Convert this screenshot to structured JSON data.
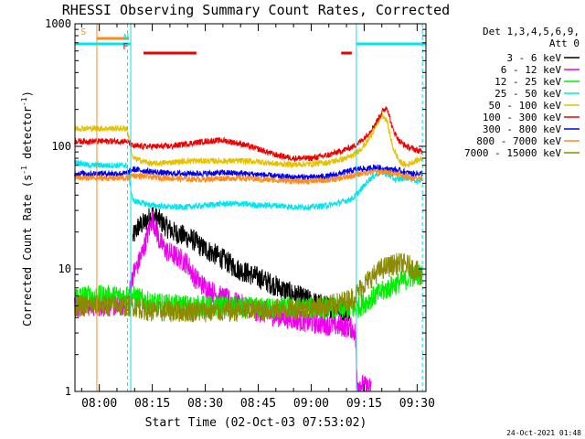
{
  "chart_data": {
    "type": "line",
    "title": "RHESSI Observing Summary Count Rates, Corrected",
    "xlabel": "Start Time (02-Oct-03 07:53:02)",
    "ylabel": "Corrected Count Rate (s",
    "ylabel_sup": "-1",
    "ylabel_tail": " detector",
    "ylabel_sup2": "-1",
    "ylabel_close": ")",
    "y_scale": "log",
    "ylim": [
      1,
      1000
    ],
    "xlim_minutes": [
      -6.9,
      92.5
    ],
    "x_ticks": [
      {
        "m": 0,
        "label": "08:00"
      },
      {
        "m": 15,
        "label": "08:15"
      },
      {
        "m": 30,
        "label": "08:30"
      },
      {
        "m": 45,
        "label": "08:45"
      },
      {
        "m": 60,
        "label": "09:00"
      },
      {
        "m": 75,
        "label": "09:15"
      },
      {
        "m": 90,
        "label": "09:30"
      }
    ],
    "y_ticks": [
      {
        "v": 1,
        "label": "1"
      },
      {
        "v": 10,
        "label": "10"
      },
      {
        "v": 100,
        "label": "100"
      },
      {
        "v": 1000,
        "label": "1000"
      }
    ],
    "legend_header": "Det 1,3,4,5,6,9,",
    "legend_header2": "Att 0",
    "timestamp": "24-Oct-2021 01:48",
    "flags": [
      {
        "label": "S",
        "color": "#ff8c1a",
        "start": -0.8,
        "end": 8.4
      },
      {
        "label": "N",
        "color": "#00e5ee",
        "start": -7.0,
        "end": 8.9
      },
      {
        "label": "F",
        "color": "#ee0000",
        "start": 12.5,
        "end": 27.5
      },
      {
        "label": "",
        "color": "#ee0000",
        "start": 68.5,
        "end": 71.5
      },
      {
        "label": "",
        "color": "#00e5ee",
        "start": 72.8,
        "end": 92.5
      }
    ],
    "vlines": [
      {
        "m": -0.7,
        "color": "#ff8c1a",
        "style": "solid"
      },
      {
        "m": 8.0,
        "color": "#00e5ee",
        "style": "dashed"
      },
      {
        "m": 8.9,
        "color": "#00e5ee",
        "style": "solid"
      },
      {
        "m": 72.8,
        "color": "#00e5ee",
        "style": "solid"
      },
      {
        "m": 91.5,
        "color": "#00e5ee",
        "style": "dashed"
      }
    ],
    "series": [
      {
        "name": "3 - 6 keV",
        "color": "#000000",
        "t": [
          9.5,
          11,
          13,
          15,
          17,
          19,
          21,
          23,
          25,
          27,
          29,
          31,
          33,
          35,
          37,
          39,
          41,
          43,
          45,
          47,
          49,
          51,
          53,
          55,
          57,
          59,
          61,
          63,
          65,
          67,
          69,
          71
        ],
        "v": [
          18,
          22,
          24,
          28,
          25,
          22,
          20,
          19,
          18,
          17,
          15,
          14,
          13,
          12,
          11,
          10,
          9.5,
          9,
          8.5,
          8,
          7.5,
          7,
          6.6,
          6.2,
          5.9,
          5.6,
          5.3,
          5.1,
          4.9,
          4.8,
          4.6,
          4.5
        ]
      },
      {
        "name": "6 - 12 keV",
        "color": "#ee00ee",
        "t": [
          -7,
          -3,
          0,
          3,
          6,
          7.8,
          9.5,
          11,
          13,
          15,
          17,
          19,
          21,
          23,
          25,
          27,
          29,
          33,
          37,
          41,
          45,
          49,
          53,
          57,
          61,
          65,
          69,
          71.5,
          72.5,
          73,
          75,
          77
        ],
        "v": [
          5,
          5,
          5,
          5,
          5,
          5,
          9,
          11,
          16,
          26,
          17,
          14,
          13,
          12,
          11,
          8.5,
          7.5,
          6.2,
          5.5,
          5,
          4.5,
          4.2,
          4,
          3.8,
          3.6,
          3.5,
          3.4,
          3.3,
          3,
          1.2,
          1.1,
          1.05
        ]
      },
      {
        "name": "12 - 25 keV",
        "color": "#00ee00",
        "t": [
          -7,
          -3,
          0,
          3,
          6,
          7.8,
          9.5,
          15,
          25,
          35,
          45,
          55,
          65,
          72.5,
          74,
          76,
          78,
          80,
          82,
          84,
          86,
          88,
          90,
          91.5
        ],
        "v": [
          6,
          6,
          6,
          6,
          6,
          6,
          6,
          5.2,
          5,
          4.9,
          4.8,
          4.8,
          4.8,
          4.7,
          5,
          5.5,
          6,
          6.5,
          7,
          7.5,
          8,
          8.5,
          9,
          9
        ]
      },
      {
        "name": "25 - 50 keV",
        "color": "#00e5ee",
        "t": [
          -7,
          -3,
          0,
          3,
          6,
          7.8,
          9.5,
          15,
          20,
          25,
          30,
          35,
          40,
          45,
          50,
          55,
          60,
          65,
          70,
          72,
          74,
          76,
          78,
          80,
          81,
          82,
          84,
          86,
          88,
          90,
          91.5
        ],
        "v": [
          75,
          70,
          70,
          70,
          70,
          70,
          36,
          33,
          32,
          32,
          33,
          34,
          34,
          33,
          33,
          32,
          32,
          33,
          36,
          38,
          44,
          52,
          58,
          62,
          60,
          58,
          53,
          55,
          55,
          52,
          55
        ]
      },
      {
        "name": "50 - 100 keV",
        "color": "#e5c100",
        "t": [
          -7,
          -3,
          0,
          3,
          6,
          7.8,
          9.5,
          15,
          20,
          25,
          30,
          35,
          40,
          45,
          50,
          55,
          60,
          65,
          70,
          72,
          74,
          76,
          78,
          80,
          81.5,
          83,
          85,
          87,
          89,
          91.5
        ],
        "v": [
          140,
          140,
          140,
          140,
          140,
          140,
          80,
          72,
          74,
          76,
          76,
          76,
          76,
          75,
          72,
          71,
          72,
          74,
          80,
          85,
          95,
          110,
          140,
          180,
          160,
          100,
          75,
          70,
          75,
          80
        ]
      },
      {
        "name": "100 - 300 keV",
        "color": "#ee0000",
        "t": [
          -7,
          -3,
          0,
          3,
          6,
          7.8,
          9.5,
          15,
          20,
          25,
          30,
          35,
          40,
          45,
          50,
          55,
          60,
          65,
          70,
          72,
          74,
          76,
          78,
          80,
          81.5,
          83,
          85,
          87,
          89,
          91.5
        ],
        "v": [
          110,
          110,
          110,
          110,
          110,
          110,
          100,
          100,
          100,
          105,
          110,
          112,
          105,
          95,
          85,
          80,
          80,
          85,
          95,
          100,
          110,
          125,
          150,
          190,
          210,
          140,
          110,
          100,
          95,
          90
        ]
      },
      {
        "name": "300 - 800 keV",
        "color": "#0000ee",
        "t": [
          -7,
          -3,
          0,
          3,
          6,
          7.8,
          9.5,
          15,
          20,
          25,
          30,
          35,
          40,
          45,
          50,
          55,
          60,
          65,
          70,
          72,
          74,
          76,
          78,
          80,
          82,
          84,
          86,
          88,
          90,
          91.5
        ],
        "v": [
          60,
          60,
          60,
          60,
          60,
          60,
          65,
          62,
          60,
          60,
          60,
          61,
          60,
          59,
          57,
          56,
          56,
          57,
          62,
          64,
          66,
          65,
          68,
          66,
          65,
          64,
          62,
          60,
          60,
          60
        ]
      },
      {
        "name": "800 - 7000 keV",
        "color": "#ff8c1a",
        "t": [
          -7,
          -3,
          0,
          3,
          6,
          7.8,
          9.5,
          15,
          20,
          25,
          30,
          35,
          40,
          45,
          50,
          55,
          60,
          65,
          70,
          72,
          74,
          76,
          78,
          80,
          82,
          84,
          86,
          88,
          90,
          91.5
        ],
        "v": [
          55,
          55,
          55,
          55,
          55,
          55,
          58,
          56,
          55,
          54,
          54,
          55,
          55,
          54,
          53,
          52,
          52,
          53,
          56,
          58,
          60,
          61,
          62,
          62,
          61,
          60,
          58,
          56,
          55,
          55
        ]
      },
      {
        "name": "7000 - 15000 keV",
        "color": "#8b8b00",
        "t": [
          -7,
          -3,
          0,
          3,
          6,
          7.8,
          9.5,
          15,
          25,
          35,
          45,
          55,
          65,
          70,
          72.5,
          74,
          76,
          78,
          80,
          82,
          84,
          86,
          88,
          90,
          91.5
        ],
        "v": [
          5,
          5,
          5,
          5,
          5,
          5,
          5,
          4.5,
          4.5,
          4.5,
          4.6,
          4.7,
          5,
          5.5,
          6,
          7,
          8,
          9,
          10,
          10.5,
          11,
          11,
          10.5,
          9.5,
          8.5
        ]
      }
    ]
  }
}
